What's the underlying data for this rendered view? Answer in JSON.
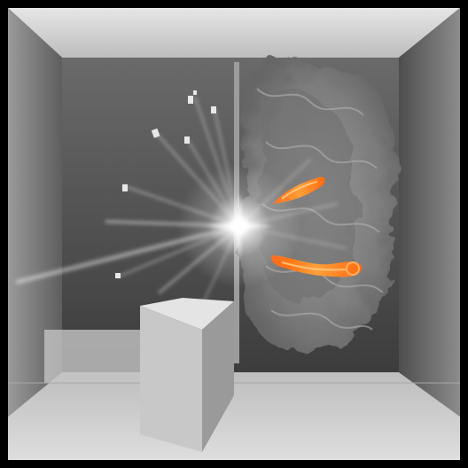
{
  "scene": {
    "subject": "render-room-scene",
    "colors": {
      "frame": "#000000",
      "ceiling": "#d9d9d9",
      "back_wall": "#5a5a5a",
      "left_wall": "#7c7c7c",
      "right_wall": "#6a6a6a",
      "floor": "#c9c9c9",
      "block": "#b4b4b4",
      "smoke": "#8f8f8f",
      "flame": "#ff7a1a",
      "light": "#ffffff"
    }
  }
}
